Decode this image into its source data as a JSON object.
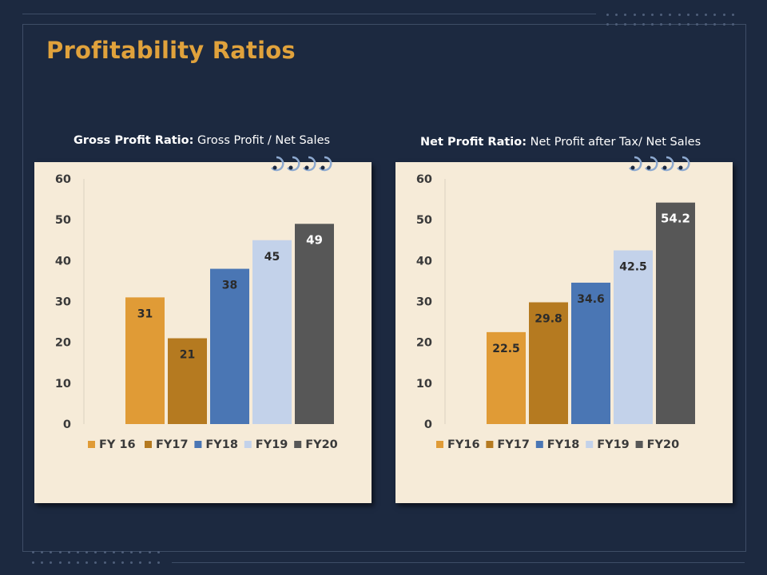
{
  "page": {
    "title": "Profitability Ratios"
  },
  "charts": [
    {
      "heading_bold": "Gross Profit Ratio:",
      "heading_rest": " Gross Profit / Net Sales"
    },
    {
      "heading_bold": "Net Profit Ratio:",
      "heading_rest": " Net Profit after Tax/ Net Sales"
    }
  ],
  "colors": {
    "background": "#1c2940",
    "title": "#e0a23c",
    "card": "#f6ebd8",
    "fy16": "#e09b36",
    "fy17": "#b57a20",
    "fy18": "#4a76b4",
    "fy19": "#c3d2ea",
    "fy20": "#575757"
  },
  "chart_data": [
    {
      "type": "bar",
      "categories": [
        "FY 16",
        "FY17",
        "FY18",
        "FY19",
        "FY20"
      ],
      "values": [
        31,
        21,
        38,
        45,
        49
      ],
      "value_labels": [
        "31",
        "21",
        "38",
        "45",
        "49"
      ],
      "ylim": [
        0,
        60
      ],
      "yticks": [
        "0",
        "10",
        "20",
        "30",
        "40",
        "50",
        "60"
      ],
      "legend": [
        "FY 16",
        "FY17",
        "FY18",
        "FY19",
        "FY20"
      ],
      "legend_position": "bottom",
      "grid": false
    },
    {
      "type": "bar",
      "categories": [
        "FY16",
        "FY17",
        "FY18",
        "FY19",
        "FY20"
      ],
      "values": [
        22.5,
        29.8,
        34.6,
        42.5,
        54.2
      ],
      "value_labels": [
        "22.5",
        "29.8",
        "34.6",
        "42.5",
        "54.2"
      ],
      "ylim": [
        0,
        60
      ],
      "yticks": [
        "0",
        "10",
        "20",
        "30",
        "40",
        "50",
        "60"
      ],
      "legend": [
        "FY16",
        "FY17",
        "FY18",
        "FY19",
        "FY20"
      ],
      "legend_position": "bottom",
      "grid": false
    }
  ]
}
